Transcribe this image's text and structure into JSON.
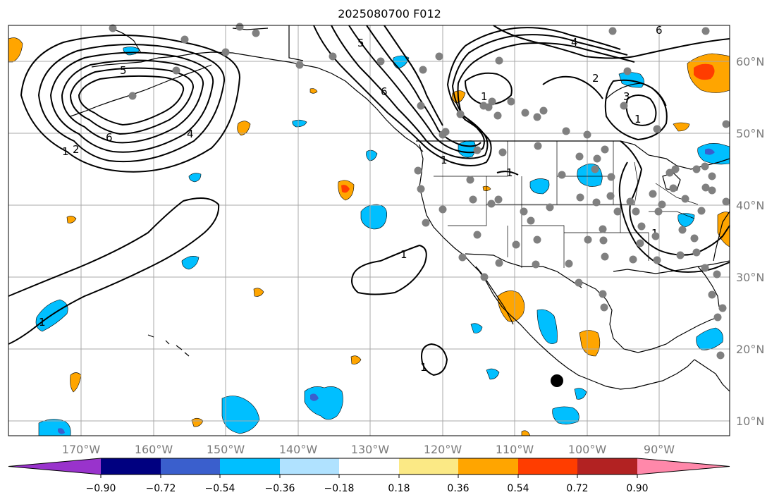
{
  "title": "2025080700 F012",
  "lon_ticks": [
    "170°W",
    "160°W",
    "150°W",
    "140°W",
    "130°W",
    "120°W",
    "110°W",
    "100°W",
    "90°W"
  ],
  "lat_ticks": [
    "60°N",
    "50°N",
    "40°N",
    "30°N",
    "20°N",
    "10°N"
  ],
  "colorbar": {
    "colors": [
      "#9933cc",
      "#000080",
      "#3a5fcd",
      "#00bfff",
      "#b0e2ff",
      "#ffffff",
      "#fbe985",
      "#ffa500",
      "#ff3d00",
      "#b22222",
      "#ff88aa"
    ],
    "tick_labels": [
      "−0.90",
      "−0.72",
      "−0.54",
      "−0.36",
      "−0.18",
      "0.18",
      "0.36",
      "0.54",
      "0.72",
      "0.90"
    ]
  },
  "contour_labels": [
    "6",
    "5",
    "4",
    "1",
    "1",
    "2",
    "6",
    "5",
    "6",
    "1",
    "1",
    "4",
    "2",
    "3",
    "1",
    "1",
    "1",
    "1",
    "1"
  ],
  "station_marker": "large black dot",
  "colors": {
    "grid": "#a8a8a8",
    "station": "#808080",
    "coast": "#000000"
  }
}
